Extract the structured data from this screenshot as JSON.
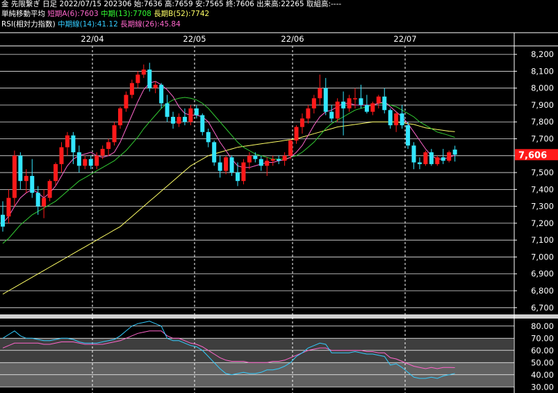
{
  "header": {
    "line1": "金 先限繋ぎ 日足 2022/07/15 202306 始:7636 高:7659 安:7565 終:7606 出来高:22265 取組高:----",
    "ma_title": "単純移動平均",
    "ma_short": "短期A(6):7603",
    "ma_mid": "中期(13):7708",
    "ma_long": "長期B(52):7742",
    "rsi_title": "RSI(相対力指数)",
    "rsi_mid": "中期線(14):41.12",
    "rsi_long": "長期線(26):45.84"
  },
  "colors": {
    "up": "#ff1a1a",
    "down": "#33e6ff",
    "ma_short": "#ff66cc",
    "ma_mid": "#33cc33",
    "ma_long": "#ffff66",
    "rsi_mid": "#33ccff",
    "rsi_long": "#ff66cc",
    "current_price_bg": "#ff1a1a"
  },
  "chart_data": [
    {
      "type": "candlestick",
      "x_labels": [
        "22/04",
        "22/05",
        "22/06",
        "22/07"
      ],
      "y_ticks": [
        6700,
        6800,
        6900,
        7000,
        7100,
        7200,
        7300,
        7400,
        7500,
        7600,
        7700,
        7800,
        7900,
        8000,
        8100,
        8200
      ],
      "ylim": [
        6660,
        8250
      ],
      "current_price": "7,606",
      "grid": true,
      "ohlc": [
        [
          7250,
          7330,
          7150,
          7180
        ],
        [
          7240,
          7400,
          7200,
          7350
        ],
        [
          7350,
          7630,
          7300,
          7600
        ],
        [
          7600,
          7620,
          7400,
          7450
        ],
        [
          7450,
          7520,
          7380,
          7480
        ],
        [
          7480,
          7580,
          7350,
          7380
        ],
        [
          7380,
          7420,
          7250,
          7300
        ],
        [
          7300,
          7400,
          7230,
          7350
        ],
        [
          7350,
          7460,
          7330,
          7450
        ],
        [
          7450,
          7560,
          7420,
          7550
        ],
        [
          7550,
          7680,
          7500,
          7650
        ],
        [
          7650,
          7740,
          7600,
          7720
        ],
        [
          7720,
          7740,
          7550,
          7620
        ],
        [
          7620,
          7660,
          7500,
          7540
        ],
        [
          7540,
          7600,
          7520,
          7580
        ],
        [
          7580,
          7600,
          7520,
          7540
        ],
        [
          7540,
          7620,
          7520,
          7600
        ],
        [
          7600,
          7660,
          7580,
          7640
        ],
        [
          7640,
          7700,
          7600,
          7680
        ],
        [
          7680,
          7800,
          7660,
          7780
        ],
        [
          7780,
          7890,
          7760,
          7880
        ],
        [
          7880,
          7980,
          7860,
          7960
        ],
        [
          7960,
          8050,
          7940,
          8030
        ],
        [
          8030,
          8100,
          8000,
          8080
        ],
        [
          8080,
          8140,
          8060,
          8110
        ],
        [
          8110,
          8150,
          7980,
          8000
        ],
        [
          8000,
          8040,
          7970,
          8020
        ],
        [
          8020,
          8030,
          7880,
          7910
        ],
        [
          7910,
          7960,
          7800,
          7830
        ],
        [
          7830,
          7860,
          7760,
          7790
        ],
        [
          7790,
          7850,
          7770,
          7830
        ],
        [
          7830,
          7880,
          7780,
          7800
        ],
        [
          7800,
          7900,
          7780,
          7880
        ],
        [
          7880,
          7900,
          7820,
          7840
        ],
        [
          7840,
          7850,
          7720,
          7740
        ],
        [
          7740,
          7760,
          7650,
          7680
        ],
        [
          7680,
          7690,
          7540,
          7560
        ],
        [
          7560,
          7600,
          7470,
          7510
        ],
        [
          7510,
          7600,
          7490,
          7590
        ],
        [
          7590,
          7600,
          7480,
          7500
        ],
        [
          7500,
          7560,
          7420,
          7450
        ],
        [
          7450,
          7580,
          7430,
          7560
        ],
        [
          7560,
          7620,
          7520,
          7600
        ],
        [
          7600,
          7620,
          7560,
          7580
        ],
        [
          7580,
          7600,
          7510,
          7540
        ],
        [
          7540,
          7590,
          7480,
          7570
        ],
        [
          7570,
          7600,
          7540,
          7580
        ],
        [
          7580,
          7600,
          7550,
          7570
        ],
        [
          7570,
          7620,
          7540,
          7600
        ],
        [
          7600,
          7700,
          7580,
          7690
        ],
        [
          7690,
          7780,
          7670,
          7770
        ],
        [
          7770,
          7850,
          7730,
          7820
        ],
        [
          7820,
          7900,
          7790,
          7880
        ],
        [
          7880,
          7960,
          7850,
          7940
        ],
        [
          7940,
          8080,
          7900,
          8000
        ],
        [
          8000,
          8060,
          7840,
          7860
        ],
        [
          7860,
          7900,
          7800,
          7820
        ],
        [
          7820,
          7940,
          7800,
          7920
        ],
        [
          7920,
          7980,
          7720,
          7880
        ],
        [
          7880,
          7960,
          7860,
          7940
        ],
        [
          7940,
          8000,
          7880,
          7940
        ],
        [
          7940,
          8020,
          7880,
          7900
        ],
        [
          7900,
          7960,
          7850,
          7860
        ],
        [
          7860,
          7920,
          7840,
          7910
        ],
        [
          7910,
          7960,
          7880,
          7950
        ],
        [
          7950,
          8000,
          7850,
          7870
        ],
        [
          7870,
          7880,
          7760,
          7780
        ],
        [
          7780,
          7860,
          7740,
          7850
        ],
        [
          7850,
          7900,
          7760,
          7780
        ],
        [
          7780,
          7800,
          7640,
          7660
        ],
        [
          7660,
          7680,
          7520,
          7560
        ],
        [
          7560,
          7590,
          7520,
          7550
        ],
        [
          7550,
          7630,
          7540,
          7620
        ],
        [
          7620,
          7640,
          7540,
          7550
        ],
        [
          7550,
          7600,
          7540,
          7590
        ],
        [
          7590,
          7640,
          7550,
          7570
        ],
        [
          7570,
          7630,
          7560,
          7620
        ],
        [
          7636,
          7659,
          7565,
          7606
        ]
      ],
      "ma_short": [
        7200,
        7240,
        7300,
        7350,
        7380,
        7400,
        7380,
        7350,
        7380,
        7420,
        7480,
        7540,
        7580,
        7600,
        7610,
        7620,
        7600,
        7590,
        7600,
        7620,
        7680,
        7760,
        7840,
        7920,
        7990,
        8030,
        8040,
        8020,
        7990,
        7950,
        7890,
        7850,
        7840,
        7840,
        7830,
        7800,
        7740,
        7680,
        7630,
        7580,
        7540,
        7530,
        7530,
        7540,
        7550,
        7560,
        7560,
        7570,
        7575,
        7590,
        7620,
        7660,
        7720,
        7780,
        7830,
        7860,
        7870,
        7890,
        7910,
        7910,
        7900,
        7900,
        7900,
        7900,
        7910,
        7920,
        7890,
        7860,
        7830,
        7790,
        7740,
        7690,
        7640,
        7600,
        7580,
        7580,
        7590,
        7603
      ],
      "ma_mid": [
        7080,
        7110,
        7150,
        7190,
        7220,
        7250,
        7270,
        7290,
        7310,
        7330,
        7360,
        7390,
        7420,
        7450,
        7470,
        7490,
        7510,
        7530,
        7550,
        7570,
        7600,
        7630,
        7670,
        7710,
        7760,
        7800,
        7840,
        7880,
        7910,
        7930,
        7940,
        7945,
        7940,
        7930,
        7910,
        7880,
        7840,
        7800,
        7760,
        7720,
        7680,
        7650,
        7630,
        7610,
        7600,
        7590,
        7580,
        7580,
        7580,
        7590,
        7600,
        7620,
        7650,
        7680,
        7720,
        7760,
        7790,
        7810,
        7830,
        7850,
        7870,
        7880,
        7890,
        7900,
        7910,
        7910,
        7900,
        7890,
        7870,
        7850,
        7830,
        7800,
        7780,
        7760,
        7740,
        7730,
        7720,
        7708
      ],
      "ma_long": [
        6780,
        6800,
        6820,
        6840,
        6860,
        6880,
        6900,
        6920,
        6940,
        6960,
        6980,
        7000,
        7020,
        7040,
        7060,
        7080,
        7100,
        7120,
        7140,
        7160,
        7180,
        7210,
        7240,
        7270,
        7300,
        7330,
        7360,
        7390,
        7420,
        7450,
        7480,
        7510,
        7540,
        7560,
        7580,
        7600,
        7610,
        7620,
        7630,
        7640,
        7650,
        7655,
        7660,
        7665,
        7670,
        7675,
        7680,
        7685,
        7690,
        7695,
        7700,
        7710,
        7720,
        7730,
        7740,
        7750,
        7760,
        7770,
        7775,
        7780,
        7785,
        7790,
        7795,
        7800,
        7800,
        7800,
        7800,
        7800,
        7795,
        7790,
        7785,
        7775,
        7765,
        7760,
        7755,
        7750,
        7745,
        7742
      ]
    },
    {
      "type": "line",
      "title": "RSI(相対力指数)",
      "y_ticks": [
        30,
        40,
        50,
        60,
        70,
        80
      ],
      "y_tick_labels": [
        "30.00",
        "40.00",
        "50.00",
        "60.00",
        "70.00",
        "80.00"
      ],
      "ylim": [
        25,
        85
      ],
      "series": [
        {
          "name": "中期線(14)",
          "values": [
            70,
            73,
            76,
            72,
            70,
            70,
            69,
            68,
            68,
            69,
            70,
            70,
            69,
            67,
            66,
            66,
            66,
            67,
            68,
            69,
            72,
            76,
            80,
            82,
            83,
            84,
            82,
            80,
            70,
            68,
            68,
            66,
            64,
            63,
            60,
            55,
            50,
            45,
            41,
            40,
            41,
            42,
            41,
            41,
            42,
            44,
            44,
            45,
            47,
            50,
            55,
            58,
            62,
            64,
            66,
            65,
            58,
            58,
            58,
            58,
            59,
            58,
            57,
            57,
            56,
            55,
            48,
            49,
            46,
            42,
            38,
            37,
            37,
            38,
            37,
            39,
            40,
            41.12
          ]
        },
        {
          "name": "長期線(26)",
          "values": [
            62,
            64,
            66,
            66,
            66,
            66,
            66,
            65,
            65,
            66,
            67,
            67,
            67,
            66,
            65,
            65,
            65,
            65,
            66,
            67,
            68,
            70,
            72,
            74,
            75,
            76,
            76,
            76,
            72,
            70,
            70,
            68,
            66,
            65,
            63,
            60,
            57,
            54,
            52,
            51,
            51,
            51,
            50,
            50,
            50,
            50,
            51,
            51,
            52,
            54,
            56,
            58,
            60,
            61,
            62,
            62,
            60,
            60,
            60,
            60,
            60,
            60,
            59,
            59,
            58,
            58,
            54,
            53,
            51,
            49,
            47,
            46,
            45,
            46,
            45,
            46,
            46,
            45.84
          ]
        }
      ]
    }
  ]
}
